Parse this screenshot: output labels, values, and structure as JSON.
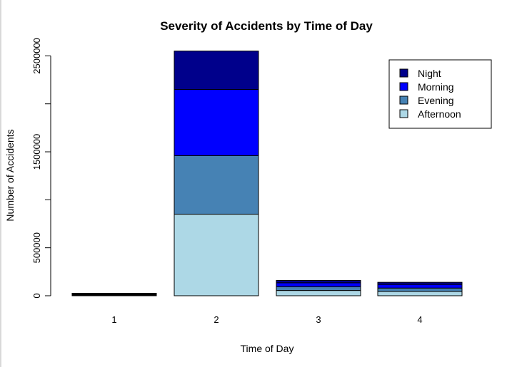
{
  "chart_data": {
    "type": "bar",
    "stacked": true,
    "title": "Severity of Accidents by Time of Day",
    "xlabel": "Time of Day",
    "ylabel": "Number of Accidents",
    "categories": [
      "1",
      "2",
      "3",
      "4"
    ],
    "ylim": [
      0,
      2540000
    ],
    "yticks": [
      0,
      500000,
      1000000,
      1500000,
      2000000,
      2500000
    ],
    "ytick_labels": [
      "0",
      "500000",
      "",
      "1500000",
      "",
      "2500000"
    ],
    "grid": false,
    "legend_position": "top-right",
    "series": [
      {
        "name": "Afternoon",
        "color": "#add8e6",
        "values": [
          7000,
          850000,
          55000,
          45000
        ]
      },
      {
        "name": "Evening",
        "color": "#4682b4",
        "values": [
          7000,
          610000,
          40000,
          35000
        ]
      },
      {
        "name": "Morning",
        "color": "#0000ff",
        "values": [
          6000,
          690000,
          40000,
          38000
        ]
      },
      {
        "name": "Night",
        "color": "#00008b",
        "values": [
          6000,
          400000,
          25000,
          22000
        ]
      }
    ],
    "legend_order": [
      "Night",
      "Morning",
      "Evening",
      "Afternoon"
    ]
  }
}
